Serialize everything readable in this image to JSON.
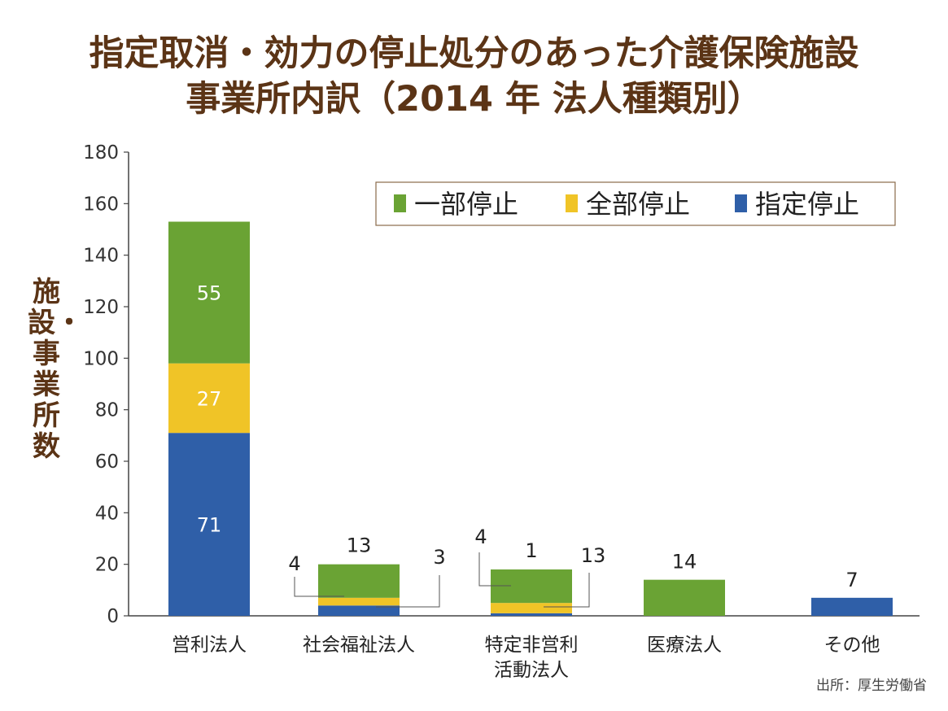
{
  "title_line1": "指定取消・効力の停止処分のあった介護保険施設",
  "title_line2": "事業所内訳（2014 年 法人種類別）",
  "source": "出所：厚生労働省",
  "colors": {
    "partial": "#6aa334",
    "full": "#f0c427",
    "designation": "#2f5fa8",
    "title": "#5b3416"
  },
  "chart_data": {
    "type": "bar",
    "stacked": true,
    "categories": [
      "営利法人",
      "社会福祉法人",
      "特定非営利活動法人",
      "医療法人",
      "その他"
    ],
    "category_lines": [
      [
        "営利法人"
      ],
      [
        "社会福祉法人"
      ],
      [
        "特定非営利",
        "活動法人"
      ],
      [
        "医療法人"
      ],
      [
        "その他"
      ]
    ],
    "series": [
      {
        "name": "指定停止",
        "color": "#2f5fa8",
        "values": [
          71,
          4,
          1,
          0,
          7
        ]
      },
      {
        "name": "全部停止",
        "color": "#f0c427",
        "values": [
          27,
          3,
          4,
          0,
          0
        ]
      },
      {
        "name": "一部停止",
        "color": "#6aa334",
        "values": [
          55,
          13,
          13,
          14,
          0
        ]
      }
    ],
    "legend_order": [
      "一部停止",
      "全部停止",
      "指定停止"
    ],
    "ylabel": "施設・事業所数",
    "ylim": [
      0,
      180
    ],
    "yticks": [
      0,
      20,
      40,
      60,
      80,
      100,
      120,
      140,
      160,
      180
    ],
    "legend_position": "top-right"
  }
}
